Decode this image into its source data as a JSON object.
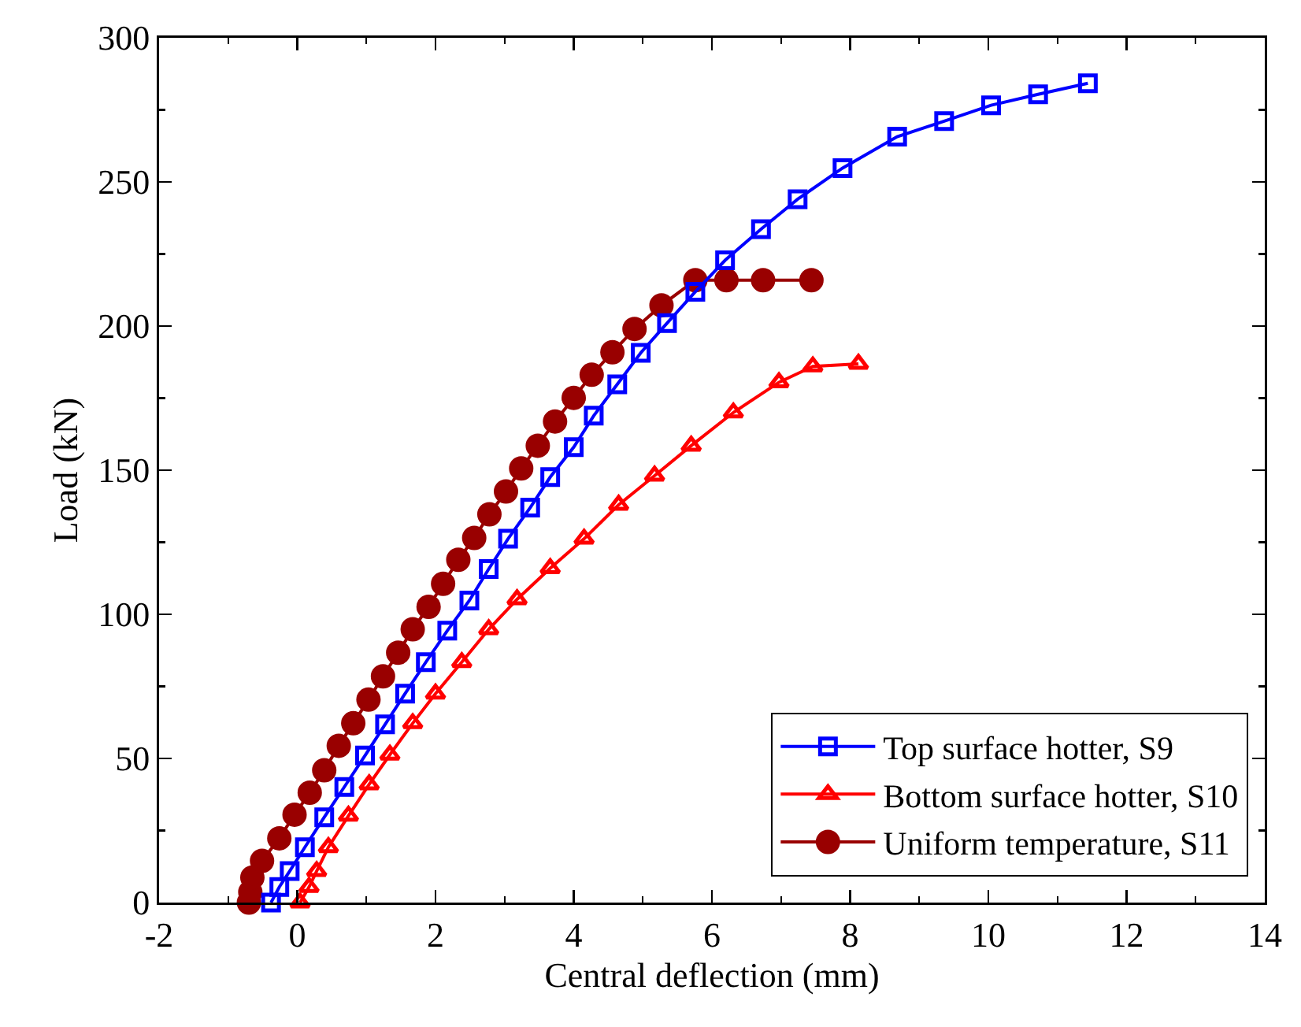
{
  "chart_data": {
    "type": "line",
    "xlabel": "Central deflection (mm)",
    "ylabel": "Load (kN)",
    "xlim": [
      -2,
      14
    ],
    "xticks": [
      -2,
      0,
      2,
      4,
      6,
      8,
      10,
      12,
      14
    ],
    "ylim": [
      0,
      300
    ],
    "yticks": [
      0,
      50,
      100,
      150,
      200,
      250,
      300
    ],
    "grid": false,
    "legend": "bottom right",
    "line_style": "solid",
    "series": [
      {
        "name": "Top surface hotter, S9",
        "color": "#0000ff",
        "marker": "square",
        "x": [
          -0.38,
          -0.26,
          -0.11,
          0.11,
          0.39,
          0.68,
          0.98,
          1.27,
          1.56,
          1.86,
          2.17,
          2.49,
          2.77,
          3.05,
          3.37,
          3.66,
          4.0,
          4.29,
          4.63,
          4.97,
          5.35,
          5.76,
          6.19,
          6.71,
          7.24,
          7.89,
          8.68,
          9.36,
          10.04,
          10.72,
          11.44
        ],
        "values": [
          0,
          5.4,
          10.9,
          19.2,
          29.6,
          40.1,
          51,
          61.8,
          72.5,
          83.4,
          94.3,
          104.8,
          115.7,
          126.2,
          137,
          147.6,
          158,
          168.9,
          179.8,
          190.7,
          201,
          211.9,
          222.8,
          233.6,
          244,
          254.8,
          265.7,
          271.1,
          276.6,
          280.4,
          284.2
        ]
      },
      {
        "name": "Bottom surface hotter, S10",
        "color": "#ff0000",
        "marker": "triangle",
        "x": [
          0.04,
          0.17,
          0.28,
          0.45,
          0.74,
          1.04,
          1.34,
          1.67,
          2.0,
          2.38,
          2.77,
          3.18,
          3.66,
          4.15,
          4.65,
          5.17,
          5.7,
          6.31,
          6.97,
          7.46,
          8.12
        ],
        "values": [
          0,
          5.4,
          10.9,
          19.2,
          30.1,
          41,
          51.3,
          62.2,
          72.5,
          83.4,
          94.8,
          105.2,
          116,
          126.2,
          138,
          148.1,
          158.5,
          170,
          180.5,
          186,
          186.9
        ]
      },
      {
        "name": "Uniform temperature, S11",
        "color": "#990000",
        "marker": "circle",
        "x": [
          -0.7,
          -0.68,
          -0.65,
          -0.51,
          -0.26,
          -0.04,
          0.18,
          0.39,
          0.6,
          0.81,
          1.03,
          1.24,
          1.46,
          1.67,
          1.9,
          2.11,
          2.33,
          2.56,
          2.78,
          3.02,
          3.24,
          3.48,
          3.73,
          4.0,
          4.26,
          4.56,
          4.88,
          5.27,
          5.76,
          6.21,
          6.74,
          7.44
        ],
        "values": [
          0,
          3.6,
          8.7,
          14.5,
          22.3,
          30.5,
          38.1,
          45.9,
          54.4,
          62.2,
          70.4,
          78.5,
          86.7,
          94.8,
          102.6,
          110.6,
          118.9,
          126.5,
          134.7,
          142.6,
          150.6,
          158.5,
          166.9,
          175.1,
          183.1,
          190.9,
          199,
          207.2,
          215.9,
          215.9,
          215.9,
          215.9
        ]
      }
    ]
  }
}
